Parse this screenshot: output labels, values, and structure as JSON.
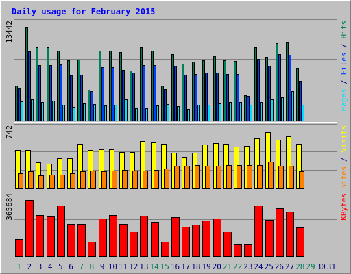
{
  "colors": {
    "background": "#c0c0c0",
    "plot_background": "#c0c0c0",
    "border_light": "#ffffff",
    "border_dark": "#808080",
    "gridline": "#808080",
    "title": "#0000ff",
    "hits": "#00805c",
    "files": "#0040ff",
    "pages": "#00e0ff",
    "visits": "#ffff00",
    "sites": "#ff8000",
    "kbytes": "#ff0000",
    "weekend_day": "#00805c",
    "weekday": "#000080"
  },
  "chart_data": {
    "type": "bar",
    "title": "Daily usage for February 2015",
    "x": [
      "1",
      "2",
      "3",
      "4",
      "5",
      "6",
      "7",
      "8",
      "9",
      "10",
      "11",
      "12",
      "13",
      "14",
      "15",
      "16",
      "17",
      "18",
      "19",
      "20",
      "21",
      "22",
      "23",
      "24",
      "25",
      "26",
      "27",
      "28",
      "29",
      "30",
      "31"
    ],
    "weekend_days": [
      1,
      7,
      8,
      14,
      15,
      21,
      22,
      28,
      29
    ],
    "panels": [
      {
        "id": "requests",
        "ylabel_parts": [
          {
            "text": "Pages",
            "color_key": "pages"
          },
          {
            "text": " / ",
            "color_key": "weekday"
          },
          {
            "text": "Files",
            "color_key": "files"
          },
          {
            "text": " / ",
            "color_key": "weekday"
          },
          {
            "text": "Hits",
            "color_key": "hits"
          }
        ],
        "ymax_label": "13442",
        "ymax": 13442,
        "series": [
          {
            "name": "Hits",
            "color_key": "hits",
            "values": [
              5100,
              13442,
              10600,
              10600,
              10100,
              8700,
              8800,
              4500,
              10100,
              10100,
              9900,
              7300,
              10600,
              10100,
              5100,
              9600,
              8200,
              8500,
              8700,
              9300,
              8700,
              8600,
              3700,
              10600,
              9200,
              11200,
              11300,
              7700,
              0,
              0,
              0
            ]
          },
          {
            "name": "Files",
            "color_key": "files",
            "values": [
              4700,
              10000,
              8000,
              8000,
              8100,
              6600,
              6700,
              4300,
              7800,
              7800,
              7400,
              7000,
              8000,
              8000,
              4600,
              7900,
              6700,
              6800,
              7000,
              7000,
              6800,
              6800,
              3600,
              8900,
              7900,
              9600,
              9500,
              5800,
              0,
              0,
              0
            ]
          },
          {
            "name": "Pages",
            "color_key": "pages",
            "values": [
              2800,
              3100,
              2700,
              2900,
              2400,
              2100,
              2600,
              2500,
              2300,
              2400,
              3100,
              1900,
              1900,
              2300,
              2500,
              2200,
              1800,
              2400,
              2400,
              2600,
              2700,
              2700,
              2400,
              2700,
              3100,
              3400,
              4300,
              2400,
              0,
              0,
              0
            ]
          }
        ]
      },
      {
        "id": "visitors",
        "ylabel_parts": [
          {
            "text": "Sites",
            "color_key": "sites"
          },
          {
            "text": " / ",
            "color_key": "weekday"
          },
          {
            "text": "Visits",
            "color_key": "visits"
          }
        ],
        "ymax_label": "742",
        "ymax": 742,
        "series": [
          {
            "name": "Visits",
            "color_key": "visits",
            "values": [
              510,
              510,
              350,
              330,
              400,
              400,
              590,
              510,
              520,
              520,
              480,
              480,
              630,
              610,
              590,
              470,
              420,
              470,
              580,
              600,
              590,
              550,
              560,
              660,
              742,
              640,
              690,
              590,
              0,
              0,
              0
            ]
          },
          {
            "name": "Sites",
            "color_key": "sites",
            "values": [
              210,
              230,
              180,
              190,
              190,
              210,
              230,
              240,
              230,
              240,
              250,
              240,
              240,
              250,
              270,
              300,
              300,
              310,
              300,
              300,
              310,
              310,
              310,
              310,
              360,
              300,
              300,
              230,
              0,
              0,
              0
            ]
          }
        ]
      },
      {
        "id": "volume",
        "ylabel_parts": [
          {
            "text": "KBytes",
            "color_key": "kbytes"
          }
        ],
        "ymax_label": "365684",
        "ymax": 365684,
        "series": [
          {
            "name": "KBytes",
            "color_key": "kbytes",
            "values": [
              115000,
              365684,
              270000,
              260000,
              330000,
              210000,
              210000,
              95000,
              245000,
              270000,
              210000,
              165000,
              265000,
              225000,
              97000,
              255000,
              195000,
              205000,
              235000,
              245000,
              165000,
              85000,
              85000,
              330000,
              240000,
              315000,
              290000,
              190000,
              0,
              0,
              0
            ]
          }
        ]
      }
    ]
  }
}
